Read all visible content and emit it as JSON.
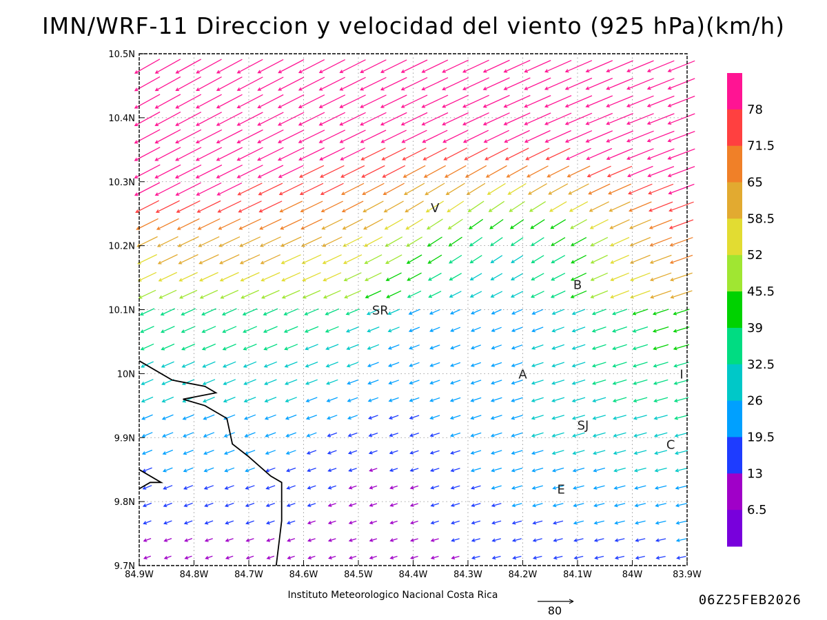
{
  "title": "IMN/WRF-11 Direccion y velocidad del viento (925 hPa)(km/h)",
  "credit": "Instituto Meteorologico Nacional Costa Rica",
  "timestamp": "06Z25FEB2026",
  "reference_vector": {
    "label": "80",
    "speed_kmh": 80
  },
  "axes": {
    "x_ticks": [
      "84.9W",
      "84.8W",
      "84.7W",
      "84.6W",
      "84.5W",
      "84.4W",
      "84.3W",
      "84.2W",
      "84.1W",
      "84W",
      "83.9W"
    ],
    "y_ticks": [
      "10.5N",
      "10.4N",
      "10.3N",
      "10.2N",
      "10.1N",
      "10N",
      "9.9N",
      "9.8N",
      "9.7N"
    ],
    "lon_range": [
      -84.9,
      -83.9
    ],
    "lat_range": [
      9.7,
      10.5
    ],
    "grid": "dotted"
  },
  "colorbar": {
    "labels": [
      "78",
      "71.5",
      "65",
      "58.5",
      "52",
      "45.5",
      "39",
      "32.5",
      "26",
      "19.5",
      "13",
      "6.5"
    ],
    "colors": [
      "#ff1493",
      "#ff4040",
      "#f08028",
      "#e2aa30",
      "#e2dc32",
      "#a0e632",
      "#00d200",
      "#00dc82",
      "#00c8c8",
      "#00a0ff",
      "#1e3cff",
      "#a000c8",
      "#7800dc"
    ]
  },
  "places": [
    {
      "label": "V",
      "lon": -84.36,
      "lat": 10.26
    },
    {
      "label": "B",
      "lon": -84.1,
      "lat": 10.14
    },
    {
      "label": "SR",
      "lon": -84.46,
      "lat": 10.1
    },
    {
      "label": "A",
      "lon": -84.2,
      "lat": 10.0
    },
    {
      "label": "I",
      "lon": -83.91,
      "lat": 10.0
    },
    {
      "label": "SJ",
      "lon": -84.09,
      "lat": 9.92
    },
    {
      "label": "C",
      "lon": -83.93,
      "lat": 9.89
    },
    {
      "label": "E",
      "lon": -84.13,
      "lat": 9.82
    }
  ],
  "coastline": [
    [
      -84.9,
      10.02
    ],
    [
      -84.84,
      9.99
    ],
    [
      -84.78,
      9.98
    ],
    [
      -84.76,
      9.97
    ],
    [
      -84.82,
      9.96
    ],
    [
      -84.78,
      9.95
    ],
    [
      -84.74,
      9.93
    ],
    [
      -84.73,
      9.89
    ],
    [
      -84.7,
      9.87
    ],
    [
      -84.66,
      9.84
    ],
    [
      -84.64,
      9.83
    ],
    [
      -84.64,
      9.77
    ],
    [
      -84.65,
      9.7
    ]
  ],
  "coastline2": [
    [
      -84.9,
      9.82
    ],
    [
      -84.88,
      9.83
    ],
    [
      -84.86,
      9.83
    ],
    [
      -84.9,
      9.85
    ]
  ]
}
